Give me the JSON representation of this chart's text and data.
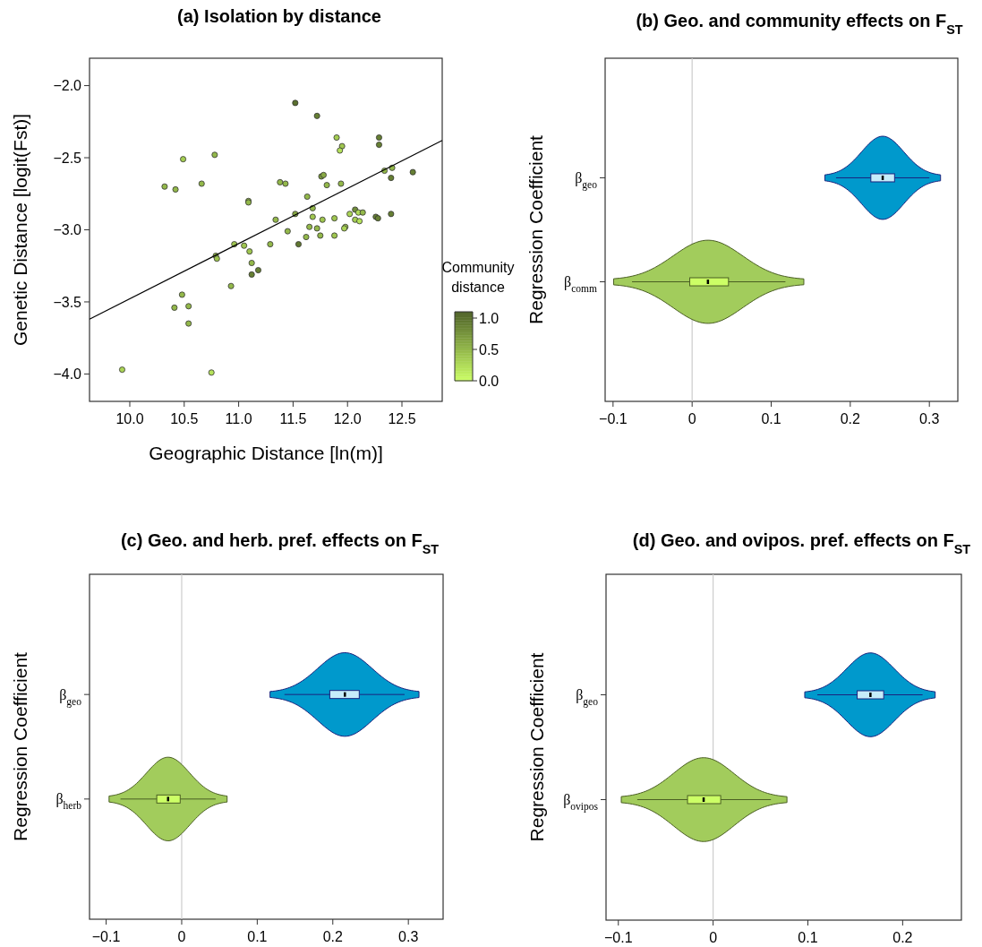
{
  "chart_data": [
    {
      "type": "scatter",
      "title": "(a) Isolation by distance",
      "xlabel": "Geographic Distance [ln(m)]",
      "ylabel": "Genetic Distance [logit(Fst)]",
      "clabel": "Community distance",
      "clim": [
        0,
        1.1
      ],
      "cticks": [
        {
          "value": 0,
          "label": "0.0"
        },
        {
          "value": 0.5,
          "label": "0.5"
        },
        {
          "value": 1,
          "label": "1.0"
        }
      ],
      "marker": "circle",
      "xlim": [
        9.63,
        12.87
      ],
      "ylim": [
        -4.19,
        -1.81
      ],
      "xticks": [
        {
          "value": 10,
          "label": "10.0"
        },
        {
          "value": 10.5,
          "label": "10.5"
        },
        {
          "value": 11,
          "label": "11.0"
        },
        {
          "value": 11.5,
          "label": "11.5"
        },
        {
          "value": 12,
          "label": "12.0"
        },
        {
          "value": 12.5,
          "label": "12.5"
        }
      ],
      "yticks": [
        {
          "value": -2,
          "label": "−2.0"
        },
        {
          "value": -2.5,
          "label": "−2.5"
        },
        {
          "value": -3,
          "label": "−3.0"
        },
        {
          "value": -3.5,
          "label": "−3.5"
        },
        {
          "value": -4,
          "label": "−4.0"
        }
      ],
      "series": [
        {
          "type": "scatter",
          "color": "#333333",
          "x": [
            11.52,
            11.72,
            11.9,
            11.95,
            11.93,
            12.29,
            12.29,
            10.49,
            10.78,
            10.32,
            10.42,
            10.66,
            11.38,
            11.43,
            11.76,
            11.78,
            11.81,
            11.94,
            12.34,
            12.41,
            12.6,
            12.4,
            12.4,
            11.09,
            11.09,
            11.63,
            11.68,
            11.52,
            11.68,
            11.34,
            11.77,
            11.88,
            12.02,
            12.07,
            12.1,
            12.14,
            12.07,
            12.11,
            12.26,
            12.28,
            11.65,
            11.72,
            11.98,
            11.97,
            11.45,
            11.75,
            11.88,
            11.62,
            11.55,
            11.29,
            10.96,
            11.05,
            11.1,
            10.79,
            10.8,
            11.12,
            11.18,
            11.12,
            10.93,
            10.48,
            10.41,
            10.54,
            10.54,
            9.93,
            10.75
          ],
          "values": [
            -2.12,
            -2.21,
            -2.36,
            -2.42,
            -2.45,
            -2.36,
            -2.41,
            -2.51,
            -2.48,
            -2.7,
            -2.72,
            -2.68,
            -2.67,
            -2.68,
            -2.63,
            -2.62,
            -2.69,
            -2.68,
            -2.59,
            -2.57,
            -2.6,
            -2.64,
            -2.89,
            -2.8,
            -2.81,
            -2.77,
            -2.85,
            -2.89,
            -2.91,
            -2.93,
            -2.93,
            -2.92,
            -2.89,
            -2.86,
            -2.88,
            -2.88,
            -2.93,
            -2.94,
            -2.91,
            -2.92,
            -2.98,
            -2.99,
            -2.98,
            -2.99,
            -3.01,
            -3.04,
            -3.04,
            -3.05,
            -3.1,
            -3.1,
            -3.1,
            -3.11,
            -3.15,
            -3.18,
            -3.2,
            -3.23,
            -3.28,
            -3.31,
            -3.39,
            -3.45,
            -3.54,
            -3.53,
            -3.65,
            -3.97,
            -3.99
          ],
          "cvalues": [
            1,
            0.9,
            0.35,
            0.4,
            0.2,
            0.9,
            0.9,
            0.35,
            0.5,
            0.5,
            0.5,
            0.5,
            0.5,
            0.5,
            0.7,
            0.6,
            0.5,
            0.5,
            0.5,
            0.5,
            0.9,
            0.9,
            0.9,
            0.5,
            0.5,
            0.5,
            0.5,
            0.6,
            0.4,
            0.5,
            0.4,
            0.4,
            0.3,
            0.8,
            0.25,
            0.5,
            0.35,
            0.2,
            0.9,
            0.9,
            0.5,
            0.5,
            0.4,
            0.3,
            0.5,
            0.5,
            0.4,
            0.5,
            0.95,
            0.5,
            0.4,
            0.4,
            0.4,
            0.5,
            0.4,
            0.5,
            0.9,
            0.9,
            0.5,
            0.5,
            0.5,
            0.5,
            0.5,
            0.3,
            0.2
          ]
        },
        {
          "type": "line",
          "x": [
            9.63,
            12.87
          ],
          "values": [
            -3.62,
            -2.38
          ],
          "color": "#000000",
          "marker": "none"
        }
      ]
    },
    {
      "type": "box",
      "orientation": "horizontal",
      "title": "(b) Geo. and community effects on F$_{ST}$",
      "ylabel": "Regression Coefficient",
      "categories": [
        "β$_{geo}$",
        "β$_{comm}$"
      ],
      "colors": [
        "#c6ecfa",
        "#ccff66"
      ],
      "boxes": [
        {
          "low": 0.182,
          "q1": 0.226,
          "median": 0.241,
          "q3": 0.256,
          "high": 0.3
        },
        {
          "low": -0.076,
          "q1": -0.003,
          "median": 0.02,
          "q3": 0.046,
          "high": 0.118
        }
      ],
      "xlim": [
        -0.11,
        0.336
      ],
      "xticks": [
        {
          "value": -0.1,
          "label": "−0.1"
        },
        0,
        0.1,
        0.2,
        0.3
      ],
      "ref_lines": [
        {
          "axis": "x",
          "value": 0,
          "color": "#cccccc"
        }
      ]
    },
    {
      "type": "box",
      "orientation": "horizontal",
      "title": "(c) Geo. and herb. pref. effects on F$_{ST}$",
      "ylabel": "Regression Coefficient",
      "categories": [
        "β$_{geo}$",
        "β$_{herb}$"
      ],
      "colors": [
        "#c6ecfa",
        "#ccff66"
      ],
      "boxes": [
        {
          "low": 0.136,
          "q1": 0.196,
          "median": 0.216,
          "q3": 0.235,
          "high": 0.295
        },
        {
          "low": -0.081,
          "q1": -0.033,
          "median": -0.018,
          "q3": -0.002,
          "high": 0.045
        }
      ],
      "xlim": [
        -0.122,
        0.346
      ],
      "xticks": [
        {
          "value": -0.1,
          "label": "−0.1"
        },
        0,
        0.1,
        0.2,
        0.3
      ],
      "ref_lines": [
        {
          "axis": "x",
          "value": 0,
          "color": "#cccccc"
        }
      ]
    },
    {
      "type": "box",
      "orientation": "horizontal",
      "title": "(d) Geo. and ovipos. pref. effects on F$_{ST}$",
      "ylabel": "Regression Coefficient",
      "categories": [
        "β$_{geo}$",
        "β$_{ovipos}$"
      ],
      "colors": [
        "#c6ecfa",
        "#ccff66"
      ],
      "boxes": [
        {
          "low": 0.11,
          "q1": 0.152,
          "median": 0.166,
          "q3": 0.18,
          "high": 0.221
        },
        {
          "low": -0.08,
          "q1": -0.027,
          "median": -0.01,
          "q3": 0.008,
          "high": 0.061
        }
      ],
      "xlim": [
        -0.113,
        0.262
      ],
      "xticks": [
        {
          "value": -0.1,
          "label": "−0.1"
        },
        0,
        0.1,
        0.2
      ],
      "ref_lines": [
        {
          "axis": "x",
          "value": 0,
          "color": "#cccccc"
        }
      ]
    }
  ]
}
